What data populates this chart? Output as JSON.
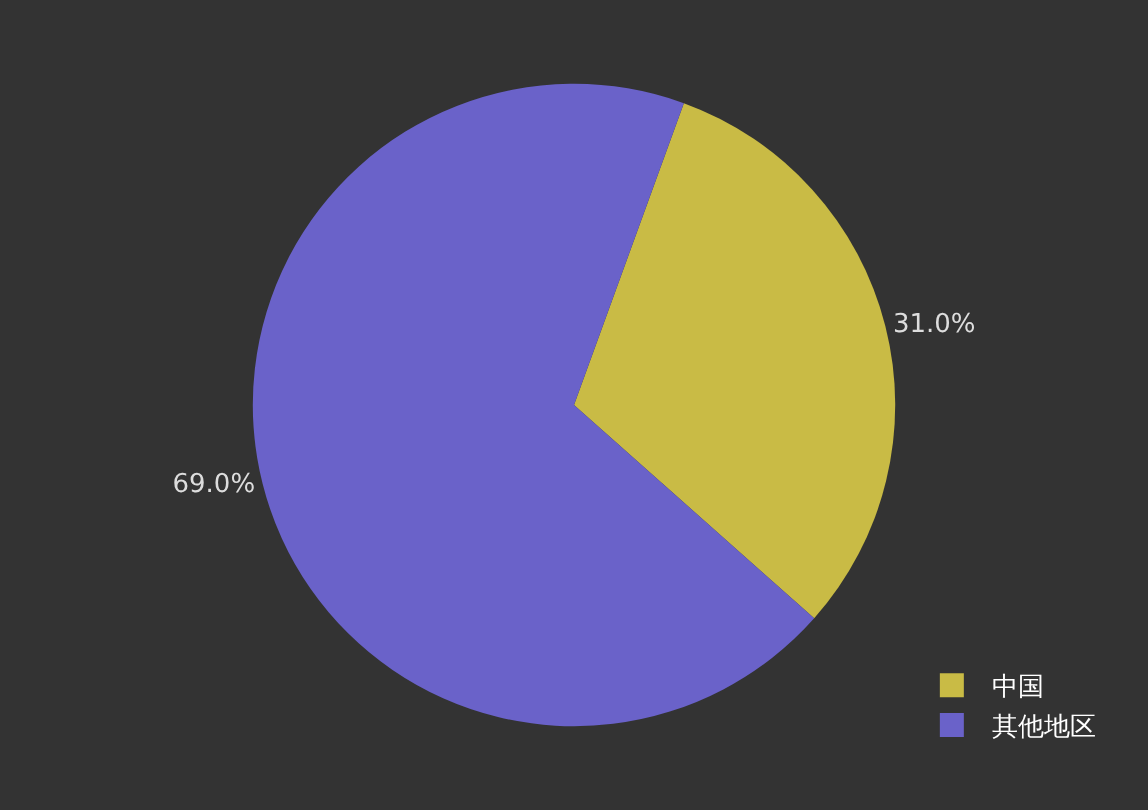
{
  "chart_data": {
    "type": "pie",
    "categories": [
      "中国",
      "其他地区"
    ],
    "values": [
      31.0,
      69.0
    ],
    "colors": [
      "#c9bb45",
      "#6a62c9"
    ],
    "value_labels": [
      "31.0%",
      "69.0%"
    ],
    "legend": "bottom right"
  }
}
